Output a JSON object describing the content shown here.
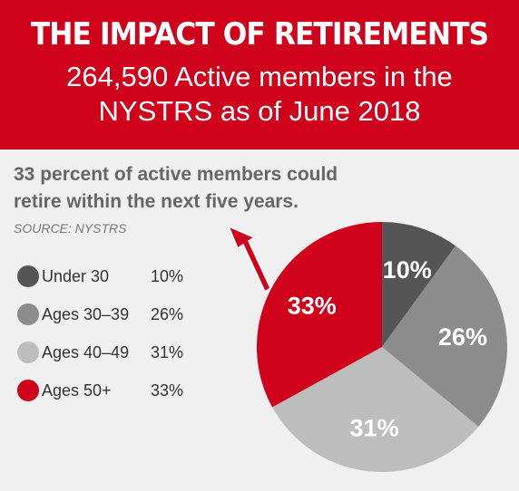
{
  "chart_data": {
    "type": "pie",
    "title": "THE IMPACT OF RETIREMENTS",
    "subtitle": "264,590 Active members in the NYSTRS as of June 2018",
    "heading": "33 percent of active members could retire within the next five years.",
    "source": "SOURCE: NYSTRS",
    "categories": [
      "Under 30",
      "Ages 30–39",
      "Ages 40–49",
      "Ages 50+"
    ],
    "values": [
      10,
      26,
      31,
      33
    ],
    "value_labels": [
      "10%",
      "26%",
      "31%",
      "33%"
    ],
    "colors": [
      "#555555",
      "#8c8c8c",
      "#bdbdbd",
      "#d0021b"
    ]
  }
}
